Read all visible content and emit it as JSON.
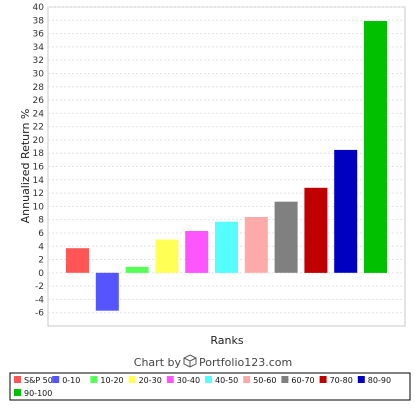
{
  "chart_data": {
    "type": "bar",
    "title": "",
    "xlabel": "Ranks",
    "ylabel": "Annualized Return %",
    "ylim": [
      -8,
      40
    ],
    "yticks": [
      -6,
      -4,
      -2,
      0,
      2,
      4,
      6,
      8,
      10,
      12,
      14,
      16,
      18,
      20,
      22,
      24,
      26,
      28,
      30,
      32,
      34,
      36,
      38,
      40
    ],
    "grid": true,
    "legend_position": "bottom",
    "categories": [
      "S&P 500",
      "0-10",
      "10-20",
      "20-30",
      "30-40",
      "40-50",
      "50-60",
      "60-70",
      "70-80",
      "80-90",
      "90-100"
    ],
    "values": [
      3.7,
      -5.7,
      0.9,
      5.0,
      6.3,
      7.7,
      8.4,
      10.7,
      12.8,
      18.5,
      37.9
    ],
    "colors": [
      "#ff5555",
      "#5555ff",
      "#55ff55",
      "#ffff55",
      "#ff55ff",
      "#55ffff",
      "#ffaaaa",
      "#808080",
      "#c00000",
      "#0000c0",
      "#00c000"
    ]
  },
  "credit": {
    "prefix": "Chart by",
    "brand": "Portfolio123.com",
    "icon": "cube-icon"
  }
}
